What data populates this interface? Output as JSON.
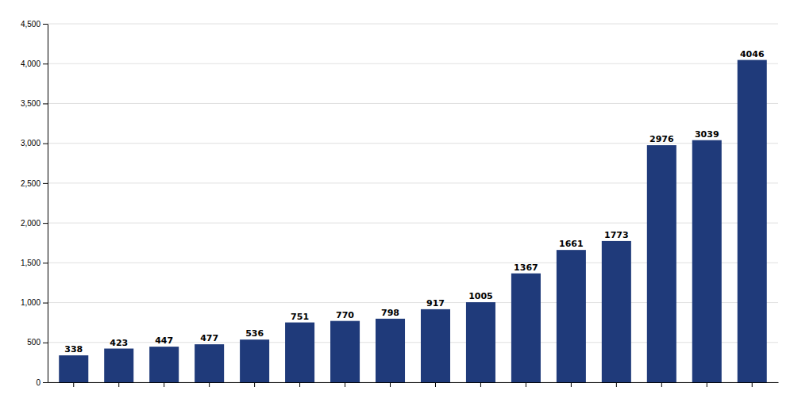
{
  "chart_data": {
    "type": "bar",
    "categories": [
      null,
      null,
      null,
      null,
      null,
      null,
      null,
      null,
      null,
      null,
      null,
      null,
      null,
      null,
      null,
      null
    ],
    "values": [
      338,
      423,
      447,
      477,
      536,
      751,
      770,
      798,
      917,
      1005,
      1367,
      1661,
      1773,
      2976,
      3039,
      4046
    ],
    "color": "#1F3A7A",
    "ylim": [
      0,
      4500
    ],
    "yticks": [
      0,
      500,
      {
        "value": 1000,
        "label": "1,000"
      },
      {
        "value": 1500,
        "label": "1,500"
      },
      {
        "value": 2000,
        "label": "2,000"
      },
      {
        "value": 2500,
        "label": "2,500"
      },
      {
        "value": 3000,
        "label": "3,000"
      },
      {
        "value": 3500,
        "label": "3,500"
      },
      {
        "value": 4000,
        "label": "4,000"
      },
      {
        "value": 4500,
        "label": "4,500"
      }
    ],
    "grid": true,
    "data_labels": true,
    "tick_labels": "y"
  }
}
